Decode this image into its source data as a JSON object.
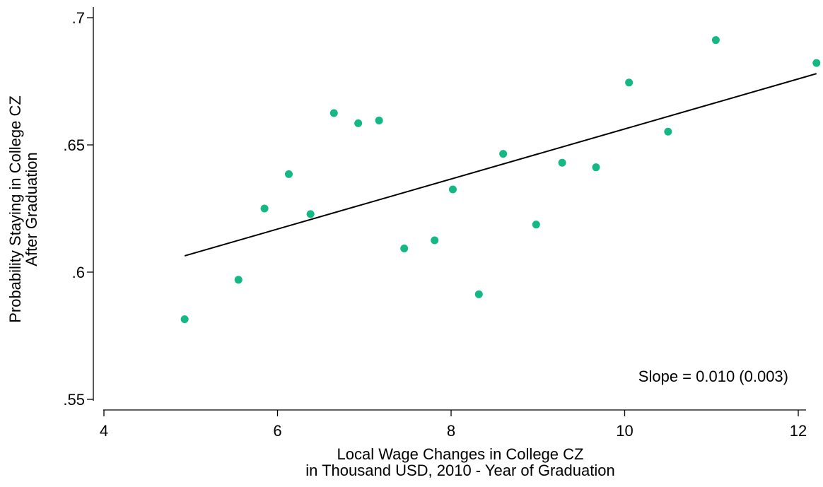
{
  "chart_data": {
    "type": "scatter",
    "title": "",
    "xlabel": [
      "Local Wage Changes in College CZ",
      "in Thousand USD, 2010 - Year of Graduation"
    ],
    "ylabel": [
      "Probability Staying in College CZ",
      "After Graduation"
    ],
    "xlim": [
      4,
      12.2
    ],
    "ylim": [
      0.55,
      0.7
    ],
    "x_ticks": [
      4,
      6,
      8,
      10,
      12
    ],
    "x_tick_labels": [
      "4",
      "6",
      "8",
      "10",
      "12"
    ],
    "y_ticks": [
      0.55,
      0.6,
      0.65,
      0.7
    ],
    "y_tick_labels": [
      ".55",
      ".6",
      ".65",
      ".7"
    ],
    "grid": false,
    "legend": "none",
    "point_color": "#14b885",
    "line_color": "#000000",
    "points": [
      {
        "x": 4.93,
        "y": 0.5815
      },
      {
        "x": 5.55,
        "y": 0.597
      },
      {
        "x": 5.85,
        "y": 0.625
      },
      {
        "x": 6.13,
        "y": 0.6385
      },
      {
        "x": 6.38,
        "y": 0.6228
      },
      {
        "x": 6.65,
        "y": 0.6625
      },
      {
        "x": 6.93,
        "y": 0.6585
      },
      {
        "x": 7.17,
        "y": 0.6596
      },
      {
        "x": 7.46,
        "y": 0.6093
      },
      {
        "x": 7.81,
        "y": 0.6125
      },
      {
        "x": 8.02,
        "y": 0.6325
      },
      {
        "x": 8.32,
        "y": 0.5913
      },
      {
        "x": 8.6,
        "y": 0.6465
      },
      {
        "x": 8.98,
        "y": 0.6187
      },
      {
        "x": 9.28,
        "y": 0.643
      },
      {
        "x": 9.67,
        "y": 0.6412
      },
      {
        "x": 10.05,
        "y": 0.6745
      },
      {
        "x": 10.5,
        "y": 0.6552
      },
      {
        "x": 11.05,
        "y": 0.6912
      },
      {
        "x": 12.21,
        "y": 0.6822
      }
    ],
    "fit_line": {
      "x": [
        4.93,
        12.21
      ],
      "y": [
        0.6064,
        0.678
      ]
    },
    "annotation": "Slope = 0.010 (0.003)"
  }
}
